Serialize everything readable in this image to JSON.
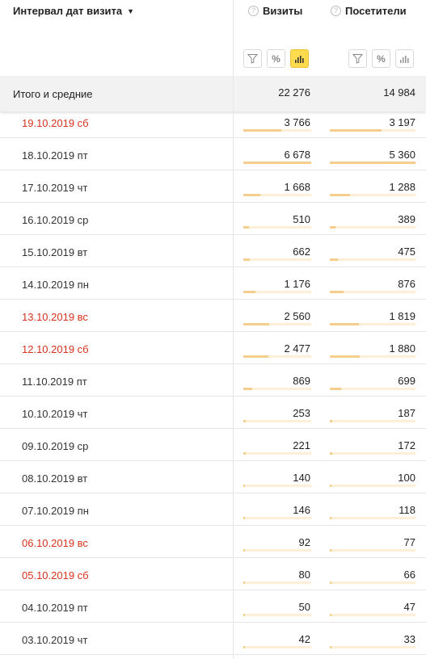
{
  "header": {
    "dimension_label": "Интервал дат визита",
    "sort_caret": "▼",
    "metrics": [
      {
        "label": "Визиты",
        "help": "?"
      },
      {
        "label": "Посетители",
        "help": "?"
      }
    ],
    "tool_labels": {
      "percent": "%"
    }
  },
  "totals": {
    "label": "Итого и средние",
    "visits": "22 276",
    "visitors": "14 984"
  },
  "colors": {
    "weekend": "#d6321c",
    "bar_fill": "#f5cd8c",
    "bar_track": "#fdeed6",
    "active_tool": "#ffdb4d"
  },
  "rows": [
    {
      "date": "19.10.2019 сб",
      "weekend": true,
      "visits": "3 766",
      "visitors": "3 197",
      "visits_share": 0.56,
      "visitors_share": 0.6
    },
    {
      "date": "18.10.2019 пт",
      "weekend": false,
      "visits": "6 678",
      "visitors": "5 360",
      "visits_share": 1.0,
      "visitors_share": 1.0
    },
    {
      "date": "17.10.2019 чт",
      "weekend": false,
      "visits": "1 668",
      "visitors": "1 288",
      "visits_share": 0.25,
      "visitors_share": 0.24
    },
    {
      "date": "16.10.2019 ср",
      "weekend": false,
      "visits": "510",
      "visitors": "389",
      "visits_share": 0.08,
      "visitors_share": 0.07
    },
    {
      "date": "15.10.2019 вт",
      "weekend": false,
      "visits": "662",
      "visitors": "475",
      "visits_share": 0.1,
      "visitors_share": 0.09
    },
    {
      "date": "14.10.2019 пн",
      "weekend": false,
      "visits": "1 176",
      "visitors": "876",
      "visits_share": 0.18,
      "visitors_share": 0.16
    },
    {
      "date": "13.10.2019 вс",
      "weekend": true,
      "visits": "2 560",
      "visitors": "1 819",
      "visits_share": 0.38,
      "visitors_share": 0.34
    },
    {
      "date": "12.10.2019 сб",
      "weekend": true,
      "visits": "2 477",
      "visitors": "1 880",
      "visits_share": 0.37,
      "visitors_share": 0.35
    },
    {
      "date": "11.10.2019 пт",
      "weekend": false,
      "visits": "869",
      "visitors": "699",
      "visits_share": 0.13,
      "visitors_share": 0.13
    },
    {
      "date": "10.10.2019 чт",
      "weekend": false,
      "visits": "253",
      "visitors": "187",
      "visits_share": 0.04,
      "visitors_share": 0.03
    },
    {
      "date": "09.10.2019 ср",
      "weekend": false,
      "visits": "221",
      "visitors": "172",
      "visits_share": 0.03,
      "visitors_share": 0.03
    },
    {
      "date": "08.10.2019 вт",
      "weekend": false,
      "visits": "140",
      "visitors": "100",
      "visits_share": 0.02,
      "visitors_share": 0.02
    },
    {
      "date": "07.10.2019 пн",
      "weekend": false,
      "visits": "146",
      "visitors": "118",
      "visits_share": 0.02,
      "visitors_share": 0.02
    },
    {
      "date": "06.10.2019 вс",
      "weekend": true,
      "visits": "92",
      "visitors": "77",
      "visits_share": 0.014,
      "visitors_share": 0.014
    },
    {
      "date": "05.10.2019 сб",
      "weekend": true,
      "visits": "80",
      "visitors": "66",
      "visits_share": 0.012,
      "visitors_share": 0.012
    },
    {
      "date": "04.10.2019 пт",
      "weekend": false,
      "visits": "50",
      "visitors": "47",
      "visits_share": 0.008,
      "visitors_share": 0.009
    },
    {
      "date": "03.10.2019 чт",
      "weekend": false,
      "visits": "42",
      "visitors": "33",
      "visits_share": 0.006,
      "visitors_share": 0.006
    }
  ]
}
